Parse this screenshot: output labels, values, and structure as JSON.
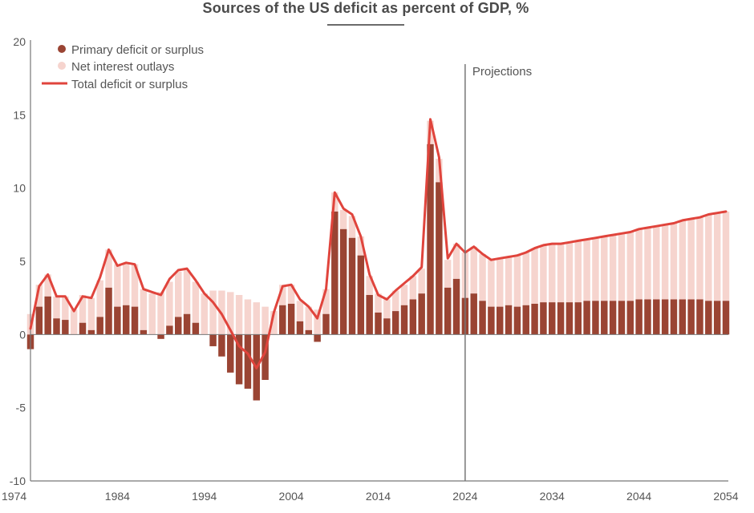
{
  "chart_data": {
    "type": "bar",
    "title": "Sources of the US deficit as percent of GDP, %",
    "ylim": [
      -10,
      20
    ],
    "xlim": [
      1974,
      2054
    ],
    "yticks": [
      "20",
      "15",
      "10",
      "5",
      "0",
      "-5",
      "-10"
    ],
    "xticks": [
      "1974",
      "1984",
      "1994",
      "2004",
      "2014",
      "2024",
      "2034",
      "2044",
      "2054"
    ],
    "annotation": "Projections",
    "projection_start": 2024,
    "grid": false,
    "legend_position": "top-left",
    "colors": {
      "primary": "#9a4433",
      "interest": "#f6d4ce",
      "total": "#e0443c",
      "axis": "#777777",
      "divider": "#777777"
    },
    "series": [
      {
        "name": "Primary deficit or surplus",
        "kind": "bar",
        "x": [
          1974,
          1975,
          1976,
          1977,
          1978,
          1979,
          1980,
          1981,
          1982,
          1983,
          1984,
          1985,
          1986,
          1987,
          1988,
          1989,
          1990,
          1991,
          1992,
          1993,
          1994,
          1995,
          1996,
          1997,
          1998,
          1999,
          2000,
          2001,
          2002,
          2003,
          2004,
          2005,
          2006,
          2007,
          2008,
          2009,
          2010,
          2011,
          2012,
          2013,
          2014,
          2015,
          2016,
          2017,
          2018,
          2019,
          2020,
          2021,
          2022,
          2023,
          2024,
          2025,
          2026,
          2027,
          2028,
          2029,
          2030,
          2031,
          2032,
          2033,
          2034,
          2035,
          2036,
          2037,
          2038,
          2039,
          2040,
          2041,
          2042,
          2043,
          2044,
          2045,
          2046,
          2047,
          2048,
          2049,
          2050,
          2051,
          2052,
          2053,
          2054
        ],
        "values": [
          -1.0,
          1.9,
          2.6,
          1.1,
          1.0,
          0.0,
          0.8,
          0.3,
          1.2,
          3.2,
          1.9,
          2.0,
          1.9,
          0.3,
          0.0,
          -0.3,
          0.6,
          1.2,
          1.4,
          0.8,
          0.0,
          -0.8,
          -1.5,
          -2.6,
          -3.4,
          -3.7,
          -4.5,
          -3.1,
          0.0,
          2.0,
          2.1,
          0.9,
          0.3,
          -0.5,
          1.4,
          8.4,
          7.2,
          6.6,
          5.4,
          2.7,
          1.5,
          1.1,
          1.6,
          2.0,
          2.4,
          2.8,
          13.0,
          10.4,
          3.2,
          3.8,
          2.5,
          2.8,
          2.3,
          1.9,
          1.9,
          2.0,
          1.9,
          2.0,
          2.1,
          2.2,
          2.2,
          2.2,
          2.2,
          2.2,
          2.3,
          2.3,
          2.3,
          2.3,
          2.3,
          2.3,
          2.4,
          2.4,
          2.4,
          2.4,
          2.4,
          2.4,
          2.4,
          2.4,
          2.3,
          2.3,
          2.3
        ]
      },
      {
        "name": "Net interest outlays",
        "kind": "bar",
        "x": [
          1974,
          1975,
          1976,
          1977,
          1978,
          1979,
          1980,
          1981,
          1982,
          1983,
          1984,
          1985,
          1986,
          1987,
          1988,
          1989,
          1990,
          1991,
          1992,
          1993,
          1994,
          1995,
          1996,
          1997,
          1998,
          1999,
          2000,
          2001,
          2002,
          2003,
          2004,
          2005,
          2006,
          2007,
          2008,
          2009,
          2010,
          2011,
          2012,
          2013,
          2014,
          2015,
          2016,
          2017,
          2018,
          2019,
          2020,
          2021,
          2022,
          2023,
          2024,
          2025,
          2026,
          2027,
          2028,
          2029,
          2030,
          2031,
          2032,
          2033,
          2034,
          2035,
          2036,
          2037,
          2038,
          2039,
          2040,
          2041,
          2042,
          2043,
          2044,
          2045,
          2046,
          2047,
          2048,
          2049,
          2050,
          2051,
          2052,
          2053,
          2054
        ],
        "values": [
          1.4,
          1.5,
          1.5,
          1.5,
          1.6,
          1.7,
          1.9,
          2.2,
          2.5,
          2.6,
          2.9,
          2.9,
          2.9,
          2.8,
          2.8,
          2.9,
          3.0,
          3.1,
          3.0,
          2.8,
          2.8,
          3.0,
          3.0,
          2.9,
          2.7,
          2.4,
          2.2,
          1.9,
          1.6,
          1.4,
          1.3,
          1.4,
          1.6,
          1.7,
          1.7,
          1.3,
          1.3,
          1.5,
          1.3,
          1.3,
          1.3,
          1.3,
          1.4,
          1.4,
          1.6,
          1.7,
          1.6,
          1.6,
          1.9,
          2.4,
          3.1,
          3.2,
          3.2,
          3.2,
          3.3,
          3.3,
          3.5,
          3.6,
          3.8,
          3.9,
          4.0,
          4.0,
          4.1,
          4.2,
          4.2,
          4.3,
          4.4,
          4.5,
          4.6,
          4.7,
          4.8,
          4.9,
          5.0,
          5.1,
          5.2,
          5.4,
          5.5,
          5.6,
          5.9,
          6.0,
          6.1
        ]
      },
      {
        "name": "Total deficit or surplus",
        "kind": "line",
        "x": [
          1974,
          1975,
          1976,
          1977,
          1978,
          1979,
          1980,
          1981,
          1982,
          1983,
          1984,
          1985,
          1986,
          1987,
          1988,
          1989,
          1990,
          1991,
          1992,
          1993,
          1994,
          1995,
          1996,
          1997,
          1998,
          1999,
          2000,
          2001,
          2002,
          2003,
          2004,
          2005,
          2006,
          2007,
          2008,
          2009,
          2010,
          2011,
          2012,
          2013,
          2014,
          2015,
          2016,
          2017,
          2018,
          2019,
          2020,
          2021,
          2022,
          2023,
          2024,
          2025,
          2026,
          2027,
          2028,
          2029,
          2030,
          2031,
          2032,
          2033,
          2034,
          2035,
          2036,
          2037,
          2038,
          2039,
          2040,
          2041,
          2042,
          2043,
          2044,
          2045,
          2046,
          2047,
          2048,
          2049,
          2050,
          2051,
          2052,
          2053,
          2054
        ],
        "values": [
          0.4,
          3.3,
          4.1,
          2.6,
          2.6,
          1.6,
          2.6,
          2.5,
          3.9,
          5.8,
          4.7,
          4.9,
          4.8,
          3.1,
          2.9,
          2.7,
          3.8,
          4.4,
          4.5,
          3.7,
          2.8,
          2.2,
          1.4,
          0.3,
          -0.8,
          -1.3,
          -2.3,
          -1.2,
          1.5,
          3.3,
          3.4,
          2.4,
          1.9,
          1.1,
          3.1,
          9.7,
          8.6,
          8.2,
          6.7,
          4.1,
          2.7,
          2.4,
          3.0,
          3.5,
          4.0,
          4.6,
          14.7,
          12.1,
          5.2,
          6.2,
          5.6,
          6.0,
          5.5,
          5.1,
          5.2,
          5.3,
          5.4,
          5.6,
          5.9,
          6.1,
          6.2,
          6.2,
          6.3,
          6.4,
          6.5,
          6.6,
          6.7,
          6.8,
          6.9,
          7.0,
          7.2,
          7.3,
          7.4,
          7.5,
          7.6,
          7.8,
          7.9,
          8.0,
          8.2,
          8.3,
          8.4
        ]
      }
    ]
  }
}
